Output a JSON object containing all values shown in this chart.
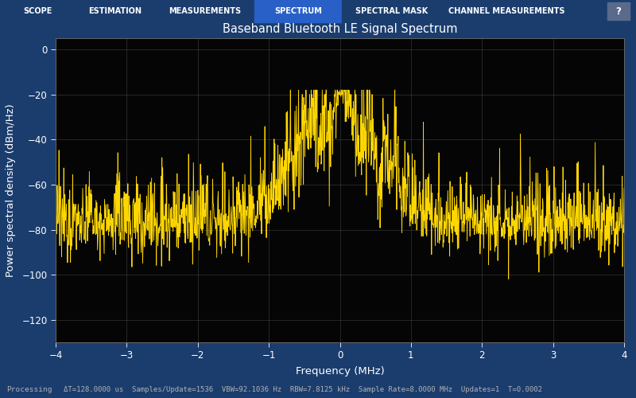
{
  "title": "Baseband Bluetooth LE Signal Spectrum",
  "xlabel": "Frequency (MHz)",
  "ylabel": "Power spectral density (dBm/Hz)",
  "xlim": [
    -4,
    4
  ],
  "ylim": [
    -130,
    5
  ],
  "yticks": [
    0,
    -20,
    -40,
    -60,
    -80,
    -100,
    -120
  ],
  "xticks": [
    -4,
    -3,
    -2,
    -1,
    0,
    1,
    2,
    3,
    4
  ],
  "line_color": "#FFD700",
  "plot_bg": "#050505",
  "grid_color": "#404040",
  "tab_bg": "#1b3d6e",
  "tab_active_bg": "#2860c8",
  "tab_text": "#ffffff",
  "status_bg": "#0c0c18",
  "status_text": "#b0b0b0",
  "tabs": [
    "SCOPE",
    "ESTIMATION",
    "MEASUREMENTS",
    "SPECTRUM",
    "SPECTRAL MASK",
    "CHANNEL MEASUREMENTS"
  ],
  "active_tab": 3,
  "status_left": "Processing",
  "status_right": "ΔT=128.0000 us  Samples/Update=1536  VBW=92.1036 Hz  RBW=7.8125 kHz  Sample Rate=8.0000 MHz  Updates=1  T=0.0002",
  "title_fontsize": 10.5,
  "axis_fontsize": 9.5,
  "tick_fontsize": 8.5,
  "fig_width": 8.0,
  "fig_height": 5.0,
  "fig_dpi": 100
}
